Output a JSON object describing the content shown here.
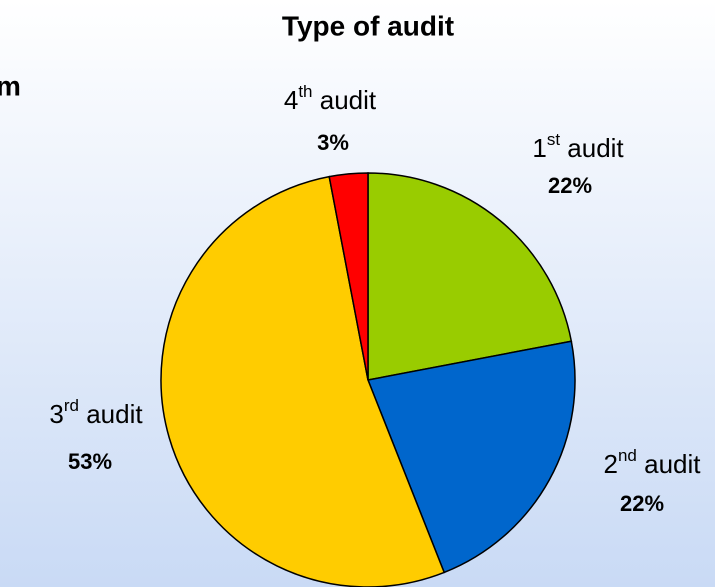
{
  "chart_data": {
    "type": "pie",
    "title": "Type of audit",
    "annotation": "m",
    "categories": [
      "1st audit",
      "2nd audit",
      "3rd audit",
      "4th audit"
    ],
    "values": [
      22,
      22,
      53,
      3
    ],
    "value_labels": [
      "22%",
      "22%",
      "53%",
      "3%"
    ],
    "colors": [
      "#99cc00",
      "#0066cc",
      "#ffcc00",
      "#ff0000"
    ]
  }
}
